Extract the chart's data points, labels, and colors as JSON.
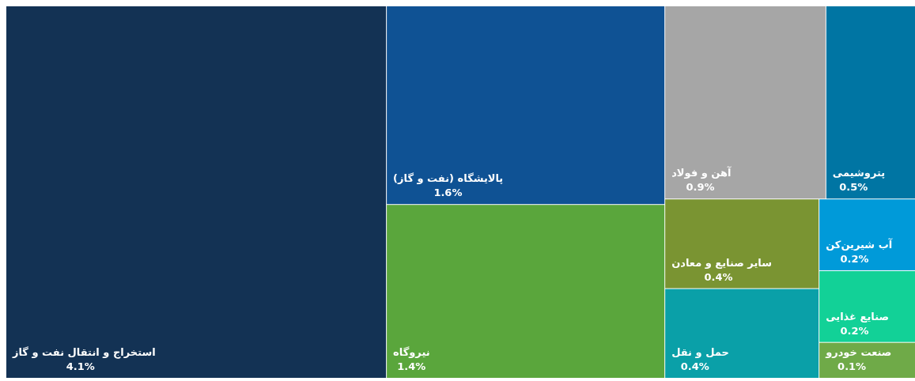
{
  "chart_data": {
    "type": "other",
    "categories": [
      "استخراج و انتقال نفت و گاز",
      "پالایشگاه (نفت و گاز)",
      "نیروگاه",
      "آهن و فولاد",
      "پتروشیمی",
      "سایر صنایع و معادن",
      "حمل و نقل",
      "آب شیرین‌کن",
      "صنایع غذایی",
      "صنعت خودرو"
    ],
    "values": [
      4.1,
      1.6,
      1.4,
      0.9,
      0.5,
      0.4,
      0.4,
      0.2,
      0.2,
      0.1
    ],
    "value_labels": [
      "4.1%",
      "1.6%",
      "1.4%",
      "0.9%",
      "0.5%",
      "0.4%",
      "0.4%",
      "0.2%",
      "0.2%",
      "0.1%"
    ],
    "colors": [
      "#133254",
      "#0f5294",
      "#5aa63c",
      "#a6a6a6",
      "#0075a3",
      "#7a9432",
      "#0aa0a8",
      "#009ad9",
      "#12d197",
      "#6faa48"
    ]
  }
}
